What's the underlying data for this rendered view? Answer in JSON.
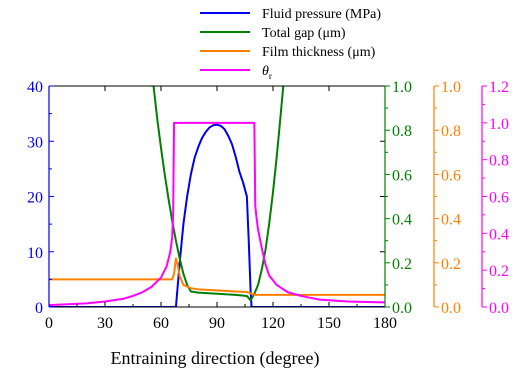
{
  "chart_data": {
    "type": "line",
    "xlabel": "Entraining direction (degree)",
    "x_ticks": [
      "0",
      "30",
      "60",
      "90",
      "120",
      "150",
      "180"
    ],
    "xlim": [
      0,
      180
    ],
    "legend_position": "top-center",
    "axes": [
      {
        "id": "pressure",
        "color": "#0000ee",
        "ylim": [
          0,
          40
        ],
        "ticks": [
          "0",
          "10",
          "20",
          "30",
          "40"
        ]
      },
      {
        "id": "gap",
        "color": "#008000",
        "ylim": [
          0,
          1.0
        ],
        "ticks": [
          "0.0",
          "0.2",
          "0.4",
          "0.6",
          "0.8",
          "1.0"
        ]
      },
      {
        "id": "film",
        "color": "#ff8000",
        "ylim": [
          0,
          1.0
        ],
        "ticks": [
          "0.0",
          "0.2",
          "0.4",
          "0.6",
          "0.8",
          "1.0"
        ]
      },
      {
        "id": "theta",
        "color": "#ff00ff",
        "ylim": [
          0,
          1.2
        ],
        "ticks": [
          "0.0",
          "0.2",
          "0.4",
          "0.6",
          "0.8",
          "1.0",
          "1.2"
        ]
      }
    ],
    "series": [
      {
        "name": "Fluid pressure (MPa)",
        "axis": "pressure",
        "color": "#0000ee",
        "points": [
          [
            0,
            0
          ],
          [
            68,
            0
          ],
          [
            70,
            8
          ],
          [
            72,
            15
          ],
          [
            74,
            20
          ],
          [
            76,
            24
          ],
          [
            78,
            27
          ],
          [
            80,
            29
          ],
          [
            82,
            30.6
          ],
          [
            84,
            31.7
          ],
          [
            86,
            32.5
          ],
          [
            88,
            32.9
          ],
          [
            90,
            33
          ],
          [
            92,
            32.8
          ],
          [
            94,
            32.2
          ],
          [
            96,
            31
          ],
          [
            98,
            29.5
          ],
          [
            100,
            27.2
          ],
          [
            102,
            24.5
          ],
          [
            104,
            22.5
          ],
          [
            106,
            20
          ],
          [
            107,
            12
          ],
          [
            108,
            3
          ],
          [
            108.5,
            0
          ],
          [
            180,
            0
          ]
        ]
      },
      {
        "name": "Total gap (μm)",
        "axis": "gap",
        "color": "#008000",
        "points": [
          [
            56,
            1.0
          ],
          [
            58,
            0.85
          ],
          [
            60,
            0.72
          ],
          [
            62,
            0.6
          ],
          [
            64,
            0.49
          ],
          [
            66,
            0.39
          ],
          [
            68,
            0.3
          ],
          [
            70,
            0.22
          ],
          [
            72,
            0.15
          ],
          [
            74,
            0.1
          ],
          [
            76,
            0.07
          ],
          [
            80,
            0.065
          ],
          [
            90,
            0.06
          ],
          [
            100,
            0.055
          ],
          [
            106,
            0.05
          ],
          [
            108,
            0.03
          ],
          [
            110,
            0.06
          ],
          [
            112,
            0.1
          ],
          [
            114,
            0.17
          ],
          [
            116,
            0.26
          ],
          [
            118,
            0.38
          ],
          [
            120,
            0.52
          ],
          [
            122,
            0.68
          ],
          [
            124,
            0.86
          ],
          [
            125.5,
            1.0
          ]
        ]
      },
      {
        "name": "Film thickness (μm)",
        "axis": "film",
        "color": "#ff8000",
        "points": [
          [
            0,
            0.125
          ],
          [
            66,
            0.125
          ],
          [
            67,
            0.15
          ],
          [
            68,
            0.22
          ],
          [
            69,
            0.19
          ],
          [
            70,
            0.14
          ],
          [
            72,
            0.1
          ],
          [
            76,
            0.085
          ],
          [
            80,
            0.08
          ],
          [
            90,
            0.075
          ],
          [
            100,
            0.07
          ],
          [
            106,
            0.068
          ],
          [
            110,
            0.055
          ],
          [
            180,
            0.055
          ]
        ]
      },
      {
        "name": "θr",
        "axis": "theta",
        "color": "#ff00ff",
        "points": [
          [
            0,
            0.01
          ],
          [
            10,
            0.015
          ],
          [
            20,
            0.02
          ],
          [
            30,
            0.03
          ],
          [
            40,
            0.045
          ],
          [
            45,
            0.06
          ],
          [
            50,
            0.08
          ],
          [
            55,
            0.11
          ],
          [
            60,
            0.16
          ],
          [
            63,
            0.22
          ],
          [
            65,
            0.3
          ],
          [
            66,
            0.38
          ],
          [
            66.5,
            0.5
          ],
          [
            67,
            1.0
          ],
          [
            110,
            1.0
          ],
          [
            110.5,
            0.55
          ],
          [
            111,
            0.5
          ],
          [
            112,
            0.42
          ],
          [
            114,
            0.32
          ],
          [
            116,
            0.23
          ],
          [
            118,
            0.17
          ],
          [
            122,
            0.12
          ],
          [
            128,
            0.08
          ],
          [
            135,
            0.06
          ],
          [
            145,
            0.04
          ],
          [
            160,
            0.03
          ],
          [
            180,
            0.025
          ]
        ]
      }
    ]
  },
  "legend": {
    "items": [
      {
        "label": "Fluid pressure (MPa)",
        "color": "#0000ee"
      },
      {
        "label": "Total gap (μm)",
        "color": "#008000"
      },
      {
        "label": "Film thickness (μm)",
        "color": "#ff8000"
      },
      {
        "label": "θ",
        "sub": "r",
        "color": "#ff00ff"
      }
    ]
  }
}
